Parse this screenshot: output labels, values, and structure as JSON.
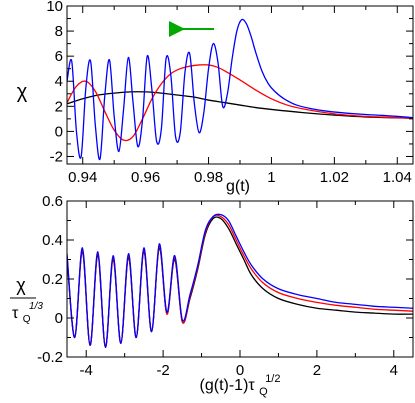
{
  "chart_data": [
    {
      "type": "line",
      "xlabel": "g(t)",
      "ylabel": "χ",
      "xlim": [
        0.935,
        1.045
      ],
      "ylim": [
        -2.6,
        10
      ],
      "xticks": [
        0.94,
        0.96,
        0.98,
        1.0,
        1.02,
        1.04
      ],
      "xtick_labels": [
        "0.94",
        "0.96",
        "0.98",
        "1",
        "1.02",
        "1.04"
      ],
      "yticks": [
        -2,
        0,
        2,
        4,
        6,
        8,
        10
      ],
      "ytick_labels": [
        "-2",
        "0",
        "2",
        "4",
        "6",
        "8",
        "10"
      ],
      "annotation": "arrow pointing left",
      "series": [
        {
          "color": "#0000ff",
          "x": [
            0.935,
            0.9365,
            0.938,
            0.9395,
            0.941,
            0.9425,
            0.944,
            0.9455,
            0.947,
            0.9485,
            0.95,
            0.9515,
            0.953,
            0.9545,
            0.956,
            0.9575,
            0.959,
            0.9605,
            0.962,
            0.9635,
            0.965,
            0.9665,
            0.968,
            0.9695,
            0.971,
            0.9725,
            0.974,
            0.9755,
            0.977,
            0.9785,
            0.98,
            0.9815,
            0.983,
            0.9845,
            0.986,
            0.9875,
            0.989,
            0.9905,
            0.992,
            0.9935,
            0.995,
            0.997,
            0.999,
            1.001,
            1.004,
            1.008,
            1.013,
            1.018,
            1.024,
            1.03,
            1.037,
            1.045
          ],
          "y": [
            4.0,
            5.6,
            0.0,
            -2.0,
            3.5,
            5.6,
            0.5,
            -2.2,
            2.8,
            5.7,
            1.2,
            -1.6,
            1.8,
            5.9,
            2.3,
            -1.2,
            0.9,
            6.0,
            3.3,
            -0.8,
            0.2,
            5.8,
            4.5,
            -0.4,
            -0.1,
            4.7,
            6.2,
            2.2,
            -0.1,
            1.5,
            5.0,
            7.0,
            5.5,
            2.0,
            3.0,
            5.8,
            8.0,
            8.9,
            8.6,
            7.6,
            6.3,
            4.8,
            3.8,
            3.2,
            2.6,
            2.1,
            1.8,
            1.6,
            1.45,
            1.35,
            1.25,
            1.1
          ]
        },
        {
          "color": "#ff0000",
          "x": [
            0.935,
            0.938,
            0.941,
            0.944,
            0.947,
            0.95,
            0.953,
            0.956,
            0.959,
            0.962,
            0.965,
            0.968,
            0.971,
            0.974,
            0.977,
            0.98,
            0.983,
            0.986,
            0.99,
            0.995,
            1.0,
            1.005,
            1.01,
            1.02,
            1.03,
            1.045
          ],
          "y": [
            2.3,
            3.6,
            4.0,
            3.2,
            1.6,
            0.1,
            -0.7,
            -0.4,
            1.0,
            2.6,
            3.8,
            4.6,
            5.0,
            5.2,
            5.3,
            5.3,
            5.1,
            4.7,
            4.1,
            3.3,
            2.6,
            2.1,
            1.8,
            1.4,
            1.2,
            1.05
          ]
        },
        {
          "color": "#000000",
          "x": [
            0.935,
            0.94,
            0.945,
            0.95,
            0.955,
            0.96,
            0.965,
            0.97,
            0.975,
            0.98,
            0.985,
            0.99,
            0.995,
            1.0,
            1.01,
            1.02,
            1.03,
            1.045
          ],
          "y": [
            2.2,
            2.6,
            2.9,
            3.05,
            3.15,
            3.15,
            3.05,
            2.9,
            2.75,
            2.5,
            2.3,
            2.1,
            1.9,
            1.75,
            1.5,
            1.3,
            1.15,
            1.05
          ]
        }
      ]
    },
    {
      "type": "line",
      "xlabel": "(g(t)-1)τ",
      "xlabel_sub": "Q",
      "xlabel_sup": "1/2",
      "ylabel_num": "χ",
      "ylabel_den": "τ",
      "ylabel_den_sub": "Q",
      "ylabel_den_sup": "1/3",
      "xlim": [
        -4.5,
        4.5
      ],
      "ylim": [
        -0.2,
        0.6
      ],
      "xticks": [
        -4,
        -2,
        0,
        2,
        4
      ],
      "xtick_labels": [
        "-4",
        "-2",
        "0",
        "2",
        "4"
      ],
      "yticks": [
        -0.2,
        0,
        0.2,
        0.4,
        0.6
      ],
      "ytick_labels": [
        "-0.2",
        "0",
        "0.2",
        "0.4",
        "0.6"
      ],
      "series": [
        {
          "color": "#0000ff",
          "x": [
            -4.5,
            -4.3,
            -4.1,
            -3.9,
            -3.7,
            -3.5,
            -3.3,
            -3.1,
            -2.9,
            -2.7,
            -2.5,
            -2.3,
            -2.1,
            -1.9,
            -1.7,
            -1.5,
            -1.3,
            -1.1,
            -0.9,
            -0.7,
            -0.5,
            -0.3,
            -0.1,
            0.1,
            0.3,
            0.6,
            1.0,
            1.5,
            2.0,
            2.5,
            3.0,
            3.5,
            4.0,
            4.5
          ],
          "y": [
            0.33,
            -0.1,
            0.36,
            -0.14,
            0.34,
            -0.15,
            0.32,
            -0.13,
            0.33,
            -0.1,
            0.36,
            -0.07,
            0.38,
            0.03,
            0.32,
            -0.01,
            0.12,
            0.27,
            0.45,
            0.52,
            0.53,
            0.5,
            0.42,
            0.34,
            0.27,
            0.2,
            0.15,
            0.12,
            0.1,
            0.08,
            0.07,
            0.06,
            0.055,
            0.05
          ]
        },
        {
          "color": "#ff0000",
          "x": [
            -4.5,
            -4.3,
            -4.1,
            -3.9,
            -3.7,
            -3.5,
            -3.3,
            -3.1,
            -2.9,
            -2.7,
            -2.5,
            -2.3,
            -2.1,
            -1.9,
            -1.7,
            -1.5,
            -1.3,
            -1.1,
            -0.9,
            -0.7,
            -0.5,
            -0.3,
            -0.1,
            0.1,
            0.3,
            0.6,
            1.0,
            1.5,
            2.0,
            2.5,
            3.0,
            3.5,
            4.0,
            4.5
          ],
          "y": [
            0.32,
            -0.1,
            0.35,
            -0.14,
            0.33,
            -0.15,
            0.31,
            -0.13,
            0.32,
            -0.1,
            0.35,
            -0.07,
            0.37,
            0.02,
            0.31,
            -0.02,
            0.11,
            0.26,
            0.44,
            0.52,
            0.52,
            0.48,
            0.4,
            0.32,
            0.25,
            0.18,
            0.13,
            0.1,
            0.08,
            0.065,
            0.055,
            0.045,
            0.04,
            0.035
          ]
        },
        {
          "color": "#000000",
          "x": [
            -4.5,
            -4.3,
            -4.1,
            -3.9,
            -3.7,
            -3.5,
            -3.3,
            -3.1,
            -2.9,
            -2.7,
            -2.5,
            -2.3,
            -2.1,
            -1.9,
            -1.7,
            -1.5,
            -1.3,
            -1.1,
            -0.9,
            -0.7,
            -0.5,
            -0.3,
            -0.1,
            0.1,
            0.3,
            0.6,
            1.0,
            1.5,
            2.0,
            2.5,
            3.0,
            3.5,
            4.0,
            4.5
          ],
          "y": [
            0.31,
            -0.1,
            0.34,
            -0.14,
            0.32,
            -0.15,
            0.3,
            -0.13,
            0.31,
            -0.1,
            0.34,
            -0.07,
            0.36,
            0.02,
            0.3,
            -0.02,
            0.1,
            0.25,
            0.43,
            0.51,
            0.51,
            0.46,
            0.38,
            0.3,
            0.22,
            0.15,
            0.1,
            0.07,
            0.05,
            0.04,
            0.03,
            0.025,
            0.02,
            0.02
          ]
        }
      ]
    }
  ]
}
